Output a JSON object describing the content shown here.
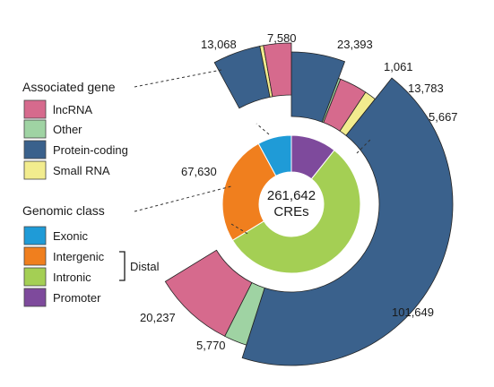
{
  "colors": {
    "exonic": "#1f9bd7",
    "intergenic": "#f07f1e",
    "intronic": "#a4cf54",
    "promoter": "#7e4a9c",
    "lncrna": "#d66a8d",
    "other": "#9fd3a3",
    "protein_coding": "#3a618c",
    "small_rna": "#f2ec8e"
  },
  "chart_data": {
    "type": "pie",
    "center": {
      "total": "261,642",
      "unit": "CREs"
    },
    "inner_ring": {
      "legend_title": "Genomic class",
      "slices": [
        {
          "key": "promoter",
          "name": "Promoter",
          "value": 27970,
          "color": "#7e4a9c"
        },
        {
          "key": "intronic",
          "name": "Intronic",
          "value": 145349,
          "color": "#a4cf54"
        },
        {
          "key": "intergenic",
          "name": "Intergenic",
          "value": 67630,
          "label": "67,630",
          "color": "#f07f1e"
        },
        {
          "key": "exonic",
          "name": "Exonic",
          "value": 20693,
          "color": "#1f9bd7"
        }
      ],
      "bracket_label": "Distal"
    },
    "outer_ring": {
      "legend_title": "Associated gene",
      "segments": [
        {
          "group": "promoter",
          "gene": "protein_coding",
          "value": 23393,
          "label": "23,393",
          "color": "#3a618c"
        },
        {
          "group": "promoter",
          "gene": "other",
          "value": 1061,
          "label": "1,061",
          "color": "#9fd3a3"
        },
        {
          "group": "promoter",
          "gene": "lncrna",
          "value": 13783,
          "label": "13,783",
          "color": "#d66a8d"
        },
        {
          "group": "promoter",
          "gene": "small_rna",
          "value": 5667,
          "label": "5,667",
          "color": "#f2ec8e"
        },
        {
          "group": "intronic",
          "gene": "protein_coding",
          "value": 101649,
          "label": "101,649",
          "color": "#3a618c"
        },
        {
          "group": "intronic",
          "gene": "other",
          "value": 5770,
          "label": "5,770",
          "color": "#9fd3a3"
        },
        {
          "group": "intronic",
          "gene": "lncrna",
          "value": 20237,
          "label": "20,237",
          "color": "#d66a8d"
        },
        {
          "group": "exonic",
          "gene": "protein_coding",
          "value": 13068,
          "label": "13,068",
          "color": "#3a618c"
        },
        {
          "group": "exonic",
          "gene": "small_rna",
          "value": 1000,
          "color": "#f2ec8e"
        },
        {
          "group": "exonic",
          "gene": "lncrna",
          "value": 7580,
          "label": "7,580",
          "color": "#d66a8d"
        }
      ]
    },
    "legend_gene": [
      {
        "name": "lncRNA",
        "color": "#d66a8d"
      },
      {
        "name": "Other",
        "color": "#9fd3a3"
      },
      {
        "name": "Protein-coding",
        "color": "#3a618c"
      },
      {
        "name": "Small RNA",
        "color": "#f2ec8e"
      }
    ],
    "legend_class": [
      {
        "name": "Exonic",
        "color": "#1f9bd7"
      },
      {
        "name": "Intergenic",
        "color": "#f07f1e"
      },
      {
        "name": "Intronic",
        "color": "#a4cf54"
      },
      {
        "name": "Promoter",
        "color": "#7e4a9c"
      }
    ]
  }
}
